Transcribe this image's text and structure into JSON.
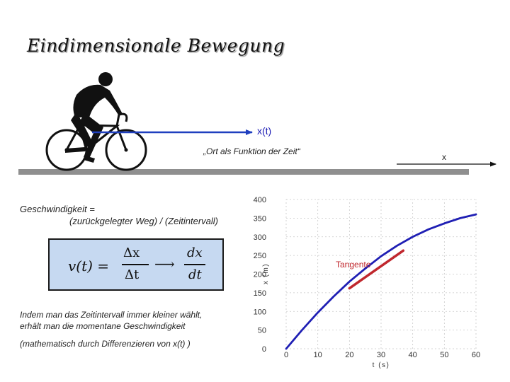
{
  "slide": {
    "title": "Eindimensionale Bewegung"
  },
  "scene": {
    "position_label": "x(t)",
    "axis_label": "x",
    "caption": "„Ort als Funktion der Zeit“"
  },
  "definition": {
    "line1": "Geschwindigkeit =",
    "line2": "(zurückgelegter Weg) / (Zeitintervall)"
  },
  "formula": {
    "lhs": "v(t) =",
    "numerator_delta": "Δx",
    "denominator_delta": "Δt",
    "arrow": "⟶",
    "numerator_diff": "dx",
    "denominator_diff": "dt"
  },
  "explanation": {
    "line1": "Indem man das Zeitintervall immer kleiner wählt,",
    "line2": "erhält man die momentane Geschwindigkeit",
    "line3": "(mathematisch durch Differenzieren von x(t) )"
  },
  "colors": {
    "curve": "#1f1fb4",
    "tangent": "#c0272d",
    "arrow": "#1f3fbf",
    "formula_bg": "#c6d9f1"
  },
  "chart_data": {
    "type": "line",
    "xlabel": "t (s)",
    "ylabel": "x (m)",
    "xlim": [
      0,
      60
    ],
    "ylim": [
      0,
      400
    ],
    "xticks": [
      0,
      10,
      20,
      30,
      40,
      50,
      60
    ],
    "yticks": [
      0,
      50,
      100,
      150,
      200,
      250,
      300,
      350,
      400
    ],
    "grid": true,
    "series": [
      {
        "x": [
          0,
          5,
          10,
          15,
          20,
          25,
          30,
          35,
          40,
          45,
          50,
          55,
          60
        ],
        "values": [
          0,
          50,
          97,
          140,
          180,
          215,
          248,
          276,
          300,
          320,
          336,
          350,
          360
        ]
      }
    ],
    "annotations": [
      {
        "label": "Tangente",
        "x_start": 20,
        "y_start": 162,
        "x_end": 37,
        "y_end": 263
      }
    ]
  }
}
